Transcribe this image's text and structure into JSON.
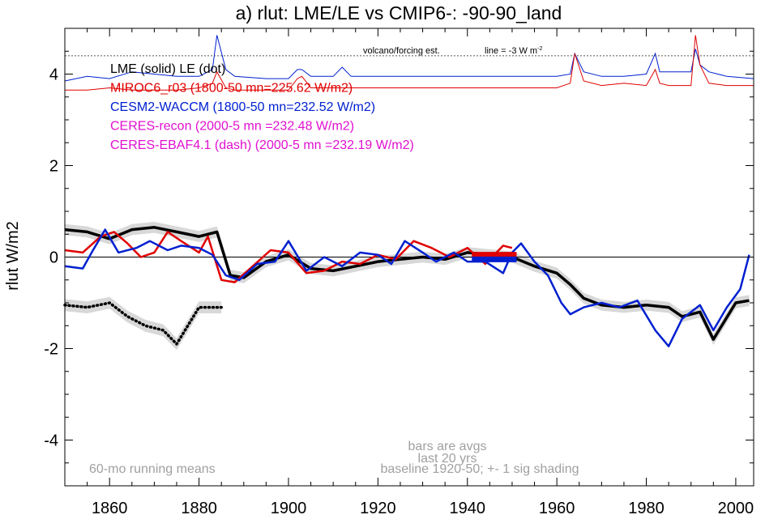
{
  "chart_data": {
    "type": "line",
    "title": "a) rlut: LME/LE vs CMIP6-: -90-90_land",
    "ylabel": "rlut W/m2",
    "xlabel": "",
    "xlim": [
      1850,
      2004
    ],
    "ylim": [
      -5,
      5
    ],
    "x_ticks": [
      1860,
      1880,
      1900,
      1920,
      1940,
      1960,
      1980,
      2000
    ],
    "y_ticks": [
      -4,
      -2,
      0,
      2,
      4
    ],
    "grid": false,
    "zero_line": 0,
    "legend": {
      "placement": "top-left",
      "entries": [
        {
          "text": "LME (solid)   LE (dot)",
          "color": "#000000"
        },
        {
          "text": "MIROC6_r03 (1800-50 mn=225.62 W/m2)",
          "color": "#e00000"
        },
        {
          "text": "CESM2-WACCM (1800-50 mn=232.52 W/m2)",
          "color": "#0020d0"
        },
        {
          "text": "CERES-recon (2000-5 mn =232.48 W/m2)",
          "color": "#e010d0"
        },
        {
          "text": "CERES-EBAF4.1 (dash) (2000-5 mn =232.19 W/m2)",
          "color": "#e010d0"
        }
      ]
    },
    "annotations": {
      "volcano": "volcano/forcing est.",
      "line_note": "line = -3 W m",
      "line_note_sup": "-2",
      "bottom_left": "60-mo running means",
      "bars_1": "bars are avgs",
      "bars_2": "last 20 yrs",
      "baseline": "baseline 1920-50; +- 1 sig shading"
    },
    "volcano_ref_y": 4.4,
    "series": [
      {
        "name": "LME (solid)",
        "color": "#000000",
        "x": [
          1850,
          1855,
          1860,
          1865,
          1870,
          1875,
          1880,
          1884,
          1887,
          1890,
          1895,
          1900,
          1905,
          1910,
          1915,
          1920,
          1925,
          1930,
          1935,
          1940,
          1945,
          1950,
          1955,
          1960,
          1963,
          1966,
          1970,
          1975,
          1980,
          1985,
          1988,
          1992,
          1995,
          2000,
          2003
        ],
        "y": [
          0.6,
          0.55,
          0.4,
          0.6,
          0.65,
          0.55,
          0.45,
          0.55,
          -0.4,
          -0.45,
          -0.1,
          0.05,
          -0.25,
          -0.3,
          -0.2,
          -0.1,
          -0.05,
          0.0,
          -0.05,
          0.1,
          0.05,
          0.0,
          -0.2,
          -0.35,
          -0.6,
          -0.9,
          -1.05,
          -1.1,
          -1.05,
          -1.1,
          -1.3,
          -1.2,
          -1.8,
          -1.0,
          -0.95
        ]
      },
      {
        "name": "LE (dot)",
        "color": "#000000",
        "dotted": true,
        "x": [
          1850,
          1855,
          1860,
          1864,
          1868,
          1872,
          1875,
          1880,
          1885
        ],
        "y": [
          -1.05,
          -1.1,
          -1.0,
          -1.3,
          -1.5,
          -1.6,
          -1.9,
          -1.1,
          -1.1
        ]
      },
      {
        "name": "MIROC6_r03",
        "color": "#e00000",
        "x": [
          1850,
          1854,
          1858,
          1861,
          1864,
          1867,
          1870,
          1873,
          1876,
          1880,
          1882,
          1885,
          1888,
          1892,
          1896,
          1900,
          1904,
          1908,
          1912,
          1916,
          1920,
          1924,
          1928,
          1932,
          1936,
          1940,
          1944,
          1948,
          1950
        ],
        "y": [
          0.15,
          0.1,
          0.45,
          0.55,
          0.3,
          0.0,
          0.1,
          0.55,
          0.35,
          0.1,
          0.45,
          -0.5,
          -0.55,
          -0.2,
          0.15,
          0.1,
          -0.35,
          -0.3,
          -0.1,
          -0.15,
          0.05,
          -0.05,
          0.35,
          0.2,
          0.0,
          0.2,
          -0.15,
          0.25,
          0.2
        ]
      },
      {
        "name": "CESM2-WACCM",
        "color": "#0020d0",
        "x": [
          1850,
          1854,
          1856,
          1859,
          1862,
          1866,
          1869,
          1873,
          1876,
          1880,
          1883,
          1886,
          1889,
          1893,
          1897,
          1900,
          1904,
          1908,
          1912,
          1916,
          1920,
          1923,
          1926,
          1930,
          1933,
          1937,
          1940,
          1944,
          1948,
          1950,
          1952,
          1955,
          1958,
          1961,
          1963,
          1966,
          1970,
          1974,
          1978,
          1982,
          1985,
          1988,
          1992,
          1995,
          1998,
          2001,
          2003
        ],
        "y": [
          -0.2,
          -0.25,
          0.1,
          0.6,
          0.1,
          0.2,
          0.35,
          0.15,
          0.25,
          0.2,
          0.05,
          -0.4,
          -0.5,
          -0.15,
          -0.1,
          0.35,
          -0.3,
          0.0,
          -0.2,
          0.1,
          0.05,
          -0.15,
          0.35,
          0.1,
          -0.1,
          0.1,
          -0.1,
          -0.1,
          -0.35,
          0.1,
          0.3,
          -0.1,
          -0.4,
          -1.0,
          -1.25,
          -1.1,
          -1.0,
          -1.1,
          -0.95,
          -1.6,
          -1.95,
          -1.35,
          -1.05,
          -1.6,
          -1.1,
          -0.7,
          0.05
        ]
      }
    ],
    "top_series": [
      {
        "name": "CESM2-WACCM forcing",
        "color": "#0020d0",
        "x": [
          1850,
          1855,
          1860,
          1865,
          1870,
          1875,
          1880,
          1883,
          1884,
          1886,
          1888,
          1895,
          1900,
          1902,
          1903,
          1905,
          1910,
          1912,
          1914,
          1920,
          1930,
          1940,
          1950,
          1960,
          1963,
          1964,
          1966,
          1970,
          1975,
          1980,
          1982,
          1983,
          1985,
          1990,
          1991,
          1992,
          1994,
          1998,
          2004
        ],
        "y": [
          3.85,
          3.95,
          3.9,
          4.05,
          4.0,
          3.95,
          3.95,
          4.1,
          4.85,
          4.1,
          3.95,
          3.9,
          3.9,
          4.1,
          4.1,
          3.95,
          3.95,
          4.15,
          3.95,
          3.95,
          3.95,
          3.95,
          3.95,
          3.95,
          4.0,
          4.45,
          4.05,
          3.95,
          3.95,
          4.0,
          4.45,
          4.05,
          4.05,
          4.05,
          4.55,
          4.2,
          4.05,
          3.95,
          3.9
        ]
      },
      {
        "name": "MIROC6 forcing",
        "color": "#e00000",
        "x": [
          1850,
          1855,
          1860,
          1865,
          1870,
          1875,
          1880,
          1883,
          1884,
          1886,
          1888,
          1895,
          1900,
          1902,
          1903,
          1905,
          1910,
          1920,
          1930,
          1940,
          1950,
          1960,
          1963,
          1964,
          1966,
          1970,
          1975,
          1980,
          1982,
          1983,
          1985,
          1990,
          1991,
          1992,
          1994,
          1998,
          2004
        ],
        "y": [
          3.65,
          3.65,
          3.7,
          3.65,
          3.65,
          3.65,
          3.7,
          3.8,
          4.05,
          3.7,
          3.65,
          3.65,
          3.65,
          3.9,
          3.95,
          3.7,
          3.7,
          3.7,
          3.7,
          3.7,
          3.7,
          3.7,
          3.8,
          4.45,
          3.85,
          3.75,
          3.8,
          3.75,
          4.1,
          3.8,
          3.75,
          3.75,
          4.85,
          4.2,
          3.8,
          3.75,
          3.75
        ]
      }
    ],
    "bars": [
      {
        "name": "MIROC6_r03",
        "color": "#e00000",
        "x0": 1941,
        "x1": 1951,
        "y": 0.05
      },
      {
        "name": "CESM2-WACCM",
        "color": "#0020d0",
        "x0": 1941,
        "x1": 1951,
        "y": -0.05
      }
    ]
  }
}
